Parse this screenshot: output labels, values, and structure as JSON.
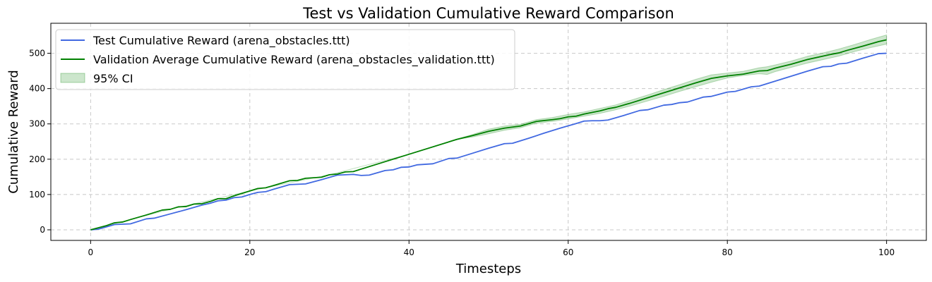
{
  "chart_data": {
    "type": "line",
    "title": "Test vs Validation Cumulative Reward Comparison",
    "xlabel": "Timesteps",
    "ylabel": "Cumulative Reward",
    "xlim": [
      -5,
      105
    ],
    "ylim": [
      -30,
      585
    ],
    "xticks": [
      0,
      20,
      40,
      60,
      80,
      100
    ],
    "yticks": [
      0,
      100,
      200,
      300,
      400,
      500
    ],
    "grid": true,
    "legend_position": "top-left",
    "series": [
      {
        "name": "Test Cumulative Reward (arena_obstacles.ttt)",
        "color": "#4169e1",
        "x": [
          0,
          1,
          3,
          5,
          7,
          8,
          10,
          12,
          14,
          15,
          16,
          17,
          18,
          19,
          20,
          21,
          22,
          23,
          25,
          27,
          29,
          31,
          33,
          34,
          35,
          37,
          38,
          39,
          40,
          41,
          43,
          45,
          46,
          48,
          50,
          52,
          53,
          55,
          57,
          59,
          61,
          62,
          63,
          64,
          65,
          67,
          69,
          70,
          72,
          73,
          74,
          75,
          77,
          78,
          80,
          81,
          83,
          84,
          86,
          88,
          90,
          92,
          93,
          94,
          95,
          97,
          99,
          100
        ],
        "values": [
          0,
          2,
          15,
          17,
          31,
          33,
          45,
          57,
          70,
          75,
          82,
          84,
          91,
          93,
          100,
          106,
          108,
          115,
          128,
          130,
          142,
          155,
          157,
          154,
          155,
          168,
          170,
          177,
          178,
          184,
          187,
          202,
          203,
          217,
          231,
          244,
          245,
          259,
          274,
          288,
          301,
          308,
          309,
          309,
          311,
          324,
          338,
          340,
          353,
          355,
          360,
          362,
          376,
          378,
          390,
          392,
          405,
          407,
          421,
          435,
          449,
          462,
          463,
          470,
          472,
          486,
          499,
          500
        ]
      },
      {
        "name": "Validation Average Cumulative Reward (arena_obstacles_validation.ttt)",
        "color": "#008000",
        "x": [
          0,
          2,
          3,
          4,
          5,
          7,
          9,
          10,
          11,
          12,
          13,
          14,
          15,
          16,
          17,
          18,
          19,
          20,
          21,
          22,
          25,
          26,
          27,
          29,
          30,
          31,
          32,
          33,
          36,
          40,
          46,
          48,
          50,
          52,
          54,
          56,
          58,
          59,
          60,
          61,
          62,
          64,
          65,
          66,
          68,
          70,
          72,
          74,
          76,
          78,
          80,
          82,
          84,
          85,
          86,
          88,
          90,
          92,
          93,
          94,
          95,
          97,
          99,
          100
        ],
        "values": [
          0,
          12,
          20,
          22,
          29,
          42,
          56,
          58,
          65,
          66,
          73,
          74,
          80,
          88,
          88,
          96,
          103,
          110,
          117,
          119,
          139,
          140,
          146,
          149,
          156,
          158,
          164,
          165,
          186,
          214,
          256,
          267,
          279,
          288,
          294,
          307,
          312,
          315,
          320,
          322,
          328,
          337,
          343,
          347,
          360,
          374,
          388,
          402,
          416,
          429,
          436,
          441,
          450,
          451,
          458,
          469,
          482,
          492,
          497,
          501,
          508,
          520,
          533,
          538
        ]
      }
    ],
    "confidence_band": {
      "name": "95% CI",
      "color": "#008000",
      "x": [
        0,
        10,
        20,
        30,
        40,
        46,
        48,
        50,
        52,
        54,
        56,
        58,
        60,
        62,
        64,
        66,
        68,
        70,
        72,
        74,
        76,
        78,
        80,
        82,
        84,
        85,
        86,
        88,
        90,
        92,
        94,
        96,
        98,
        100
      ],
      "lower": [
        0,
        58,
        110,
        156,
        214,
        256,
        263,
        272,
        282,
        289,
        302,
        307,
        314,
        322,
        330,
        340,
        352,
        365,
        378,
        392,
        405,
        418,
        430,
        437,
        442,
        440,
        448,
        460,
        472,
        482,
        492,
        505,
        516,
        526
      ],
      "upper": [
        0,
        58,
        110,
        156,
        214,
        257,
        270,
        285,
        294,
        299,
        312,
        318,
        327,
        334,
        344,
        354,
        368,
        382,
        397,
        411,
        426,
        439,
        444,
        449,
        459,
        462,
        467,
        478,
        491,
        501,
        512,
        525,
        539,
        552
      ]
    }
  }
}
